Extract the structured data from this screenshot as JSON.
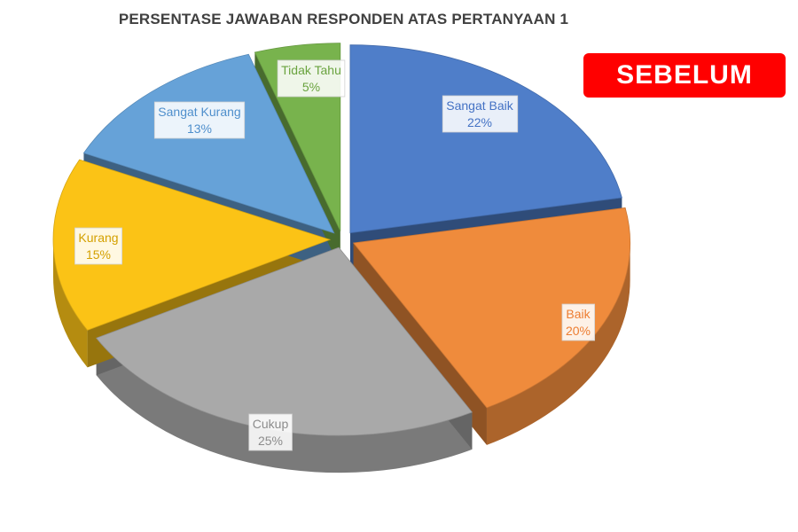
{
  "badge": {
    "text": "SEBELUM",
    "color": "#ff0000"
  },
  "chart_data": {
    "type": "pie",
    "title": "PERSENTASE JAWABAN RESPONDEN ATAS PERTANYAAN 1",
    "style": "3d-exploded",
    "legend": "none",
    "slices": [
      {
        "name": "Sangat Baik",
        "value": 22,
        "label": "22%",
        "color": "#4f7ec9",
        "text_color": "#4472c4"
      },
      {
        "name": "Baik",
        "value": 20,
        "label": "20%",
        "color": "#ef8b3c",
        "text_color": "#ed7d31"
      },
      {
        "name": "Cukup",
        "value": 25,
        "label": "25%",
        "color": "#a9a9a9",
        "text_color": "#8c8c8c"
      },
      {
        "name": "Kurang",
        "value": 15,
        "label": "15%",
        "color": "#fbc316",
        "text_color": "#d4a000"
      },
      {
        "name": "Sangat Kurang",
        "value": 13,
        "label": "13%",
        "color": "#66a2d8",
        "text_color": "#4f8fcc"
      },
      {
        "name": "Tidak Tahu",
        "value": 5,
        "label": "5%",
        "color": "#78b34d",
        "text_color": "#6aa33f"
      }
    ]
  }
}
